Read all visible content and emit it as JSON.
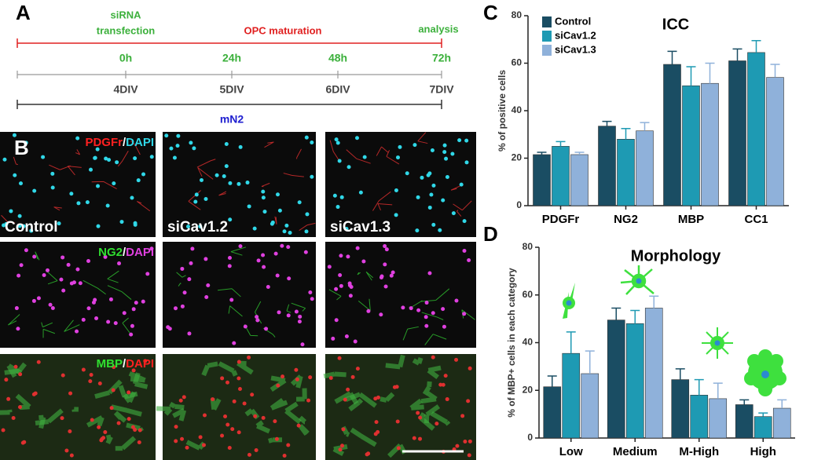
{
  "panels": [
    "A",
    "B",
    "C",
    "D"
  ],
  "timeline": {
    "events": [
      "siRNA",
      "transfection",
      "OPC maturation",
      "analysis"
    ],
    "hours": [
      "0h",
      "24h",
      "48h",
      "72h"
    ],
    "div": [
      "4DIV",
      "5DIV",
      "6DIV",
      "7DIV"
    ],
    "medium": "mN2"
  },
  "images": {
    "stains": [
      {
        "marker": "PDGFr",
        "separator": "/",
        "counter": "DAPI"
      },
      {
        "marker": "NG2",
        "separator": "/",
        "counter": "DAPI"
      },
      {
        "marker": "MBP",
        "separator": "/",
        "counter": "DAPI"
      }
    ],
    "conditions": [
      "Control",
      "siCav1.2",
      "siCav1.3"
    ]
  },
  "chart_data": [
    {
      "type": "bar",
      "title": "ICC",
      "y_label": "% of positive cells",
      "categories": [
        "PDGFr",
        "NG2",
        "MBP",
        "CC1"
      ],
      "series": [
        {
          "name": "Control",
          "color": "#1a4d63",
          "values": [
            21.5,
            33.5,
            59.5,
            61
          ],
          "errors": [
            1,
            2,
            5.5,
            5
          ]
        },
        {
          "name": "siCav1.2",
          "color": "#1e9ab3",
          "values": [
            25,
            28,
            50.5,
            64.5
          ],
          "errors": [
            2,
            4.5,
            8,
            5
          ]
        },
        {
          "name": "siCav1.3",
          "color": "#8fb1da",
          "values": [
            21.5,
            31.5,
            51.5,
            54
          ],
          "errors": [
            1,
            3.5,
            8.5,
            5.5
          ]
        }
      ],
      "ylim": [
        0,
        80
      ],
      "yticks": [
        0,
        20,
        40,
        60,
        80
      ],
      "legend": "top-left"
    },
    {
      "type": "bar",
      "title": "Morphology",
      "y_label": "% of MBP+ cells in each category",
      "categories": [
        "Low",
        "Medium",
        "M-High",
        "High"
      ],
      "series": [
        {
          "name": "Control",
          "color": "#1a4d63",
          "values": [
            21.5,
            49.5,
            24.5,
            14
          ],
          "errors": [
            4.5,
            5,
            4.5,
            2
          ]
        },
        {
          "name": "siCav1.2",
          "color": "#1e9ab3",
          "values": [
            35.5,
            48,
            18,
            9
          ],
          "errors": [
            9,
            5.5,
            6.5,
            1.5
          ]
        },
        {
          "name": "siCav1.3",
          "color": "#8fb1da",
          "values": [
            27,
            54.5,
            16.5,
            12.5
          ],
          "errors": [
            9.5,
            5,
            6.5,
            3.5
          ]
        }
      ],
      "ylim": [
        0,
        80
      ],
      "yticks": [
        0,
        20,
        40,
        60,
        80
      ]
    }
  ]
}
